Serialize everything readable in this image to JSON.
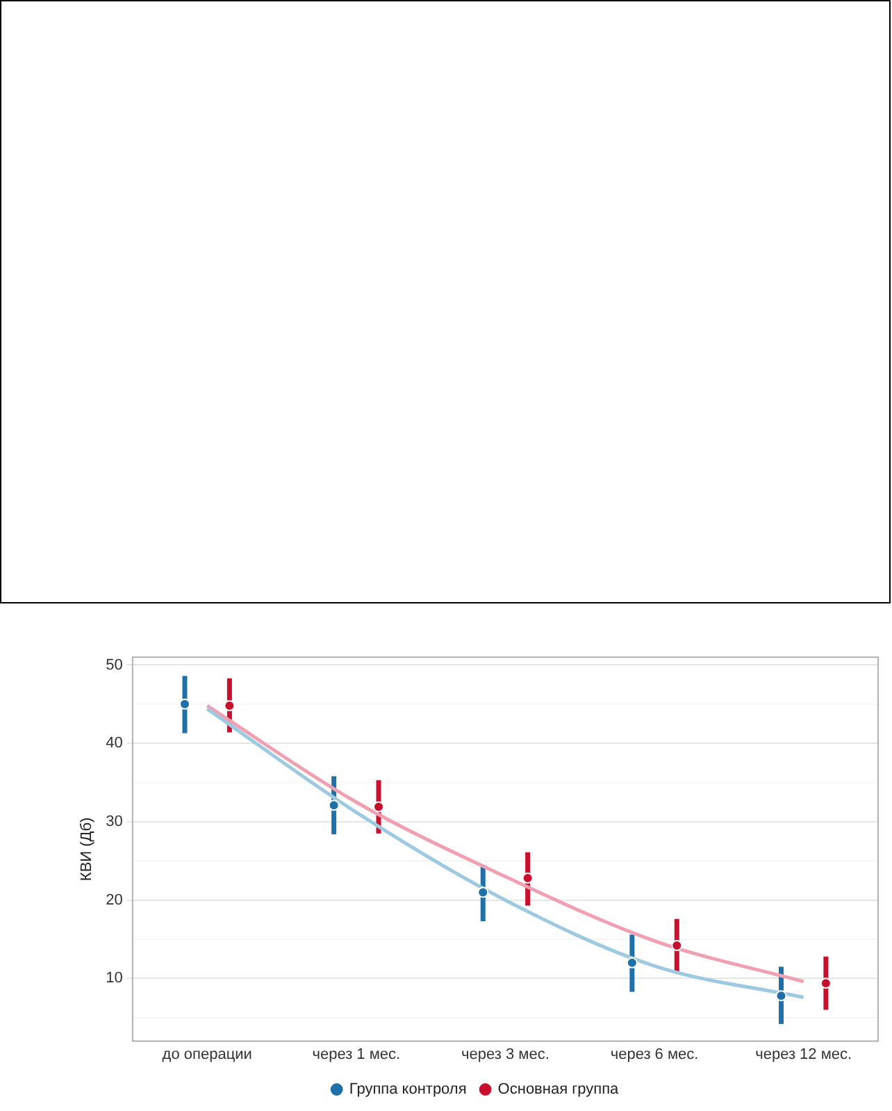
{
  "chart_data": {
    "type": "scatter",
    "ylabel": "КВИ (Дб)",
    "categories": [
      "до операции",
      "через 1 мес.",
      "через 3 мес.",
      "через 6 мес.",
      "через 12 мес."
    ],
    "ylim": [
      2,
      51
    ],
    "yticks": [
      10,
      20,
      30,
      40,
      50
    ],
    "grid": "y",
    "legend": "bottom",
    "series": [
      {
        "name": "Группа контроля",
        "color": "#1f6fa8",
        "marker": "circle",
        "values": [
          45.0,
          32.1,
          21.0,
          12.0,
          7.8
        ],
        "errors": [
          [
            41.3,
            48.6
          ],
          [
            28.4,
            35.8
          ],
          [
            17.3,
            24.5
          ],
          [
            8.3,
            15.6
          ],
          [
            4.2,
            11.5
          ]
        ]
      },
      {
        "name": "Основная группа",
        "color": "#c8102e",
        "marker": "circle",
        "values": [
          44.8,
          31.9,
          22.8,
          14.2,
          9.4
        ],
        "errors": [
          [
            41.4,
            48.3
          ],
          [
            28.5,
            35.3
          ],
          [
            19.3,
            26.1
          ],
          [
            10.9,
            17.6
          ],
          [
            6.0,
            12.8
          ]
        ]
      },
      {
        "type": "line",
        "color": "#9ecae1",
        "marker": "none",
        "values": [
          44.4,
          31.2,
          20.0,
          11.6,
          7.6
        ]
      },
      {
        "type": "line",
        "color": "#f0a0b0",
        "marker": "none",
        "values": [
          44.8,
          32.5,
          23.0,
          14.8,
          9.6
        ]
      }
    ]
  }
}
